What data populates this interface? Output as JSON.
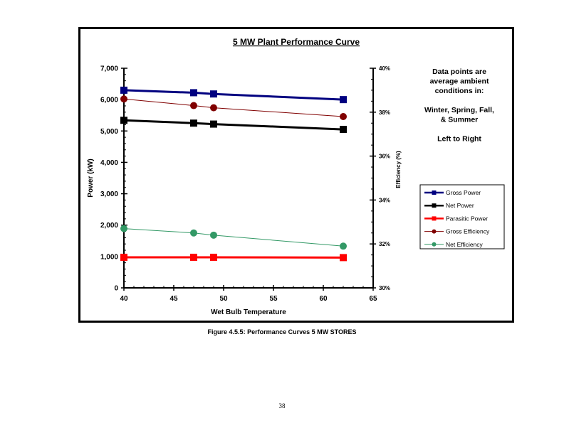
{
  "chart_data": {
    "type": "line",
    "title": "5 MW Plant Performance Curve",
    "xlabel": "Wet Bulb Temperature",
    "ylabel": "Power (kW)",
    "y2label": "Efficiency (%)",
    "xlim": [
      40,
      65
    ],
    "ylim": [
      0,
      7000
    ],
    "y2lim": [
      30,
      40
    ],
    "x_ticks": [
      40,
      45,
      50,
      55,
      60,
      65
    ],
    "y_ticks": [
      0,
      1000,
      2000,
      3000,
      4000,
      5000,
      6000,
      7000
    ],
    "y_tick_labels": [
      "0",
      "1,000",
      "2,000",
      "3,000",
      "4,000",
      "5,000",
      "6,000",
      "7,000"
    ],
    "y2_ticks": [
      30,
      32,
      34,
      36,
      38,
      40
    ],
    "y2_tick_labels": [
      "30%",
      "32%",
      "34%",
      "36%",
      "38%",
      "40%"
    ],
    "x": [
      40,
      47,
      49,
      62
    ],
    "series": [
      {
        "name": "Gross Power",
        "axis": "left",
        "values": [
          6300,
          6220,
          6180,
          6000
        ],
        "color": "#000080",
        "marker": "square",
        "width": 3
      },
      {
        "name": "Net Power",
        "axis": "left",
        "values": [
          5340,
          5250,
          5220,
          5050
        ],
        "color": "#000000",
        "marker": "square",
        "width": 3
      },
      {
        "name": "Parasitic Power",
        "axis": "left",
        "values": [
          975,
          975,
          975,
          965
        ],
        "color": "#ff0000",
        "marker": "square",
        "width": 3
      },
      {
        "name": "Gross Efficiency",
        "axis": "right",
        "values": [
          38.6,
          38.3,
          38.2,
          37.8
        ],
        "color": "#800000",
        "marker": "circle",
        "width": 1
      },
      {
        "name": "Net Efficiency",
        "axis": "right",
        "values": [
          32.7,
          32.5,
          32.4,
          31.9
        ],
        "color": "#339966",
        "marker": "circle",
        "width": 1
      }
    ],
    "annotation": [
      "Data points are",
      "average ambient",
      "conditions in:",
      "",
      "Winter, Spring, Fall,",
      "& Summer",
      "",
      "Left to Right"
    ],
    "legend_position": "right",
    "grid": false
  },
  "caption": "Figure 4.5.5:  Performance Curves 5 MW STORES",
  "page_number": "38"
}
